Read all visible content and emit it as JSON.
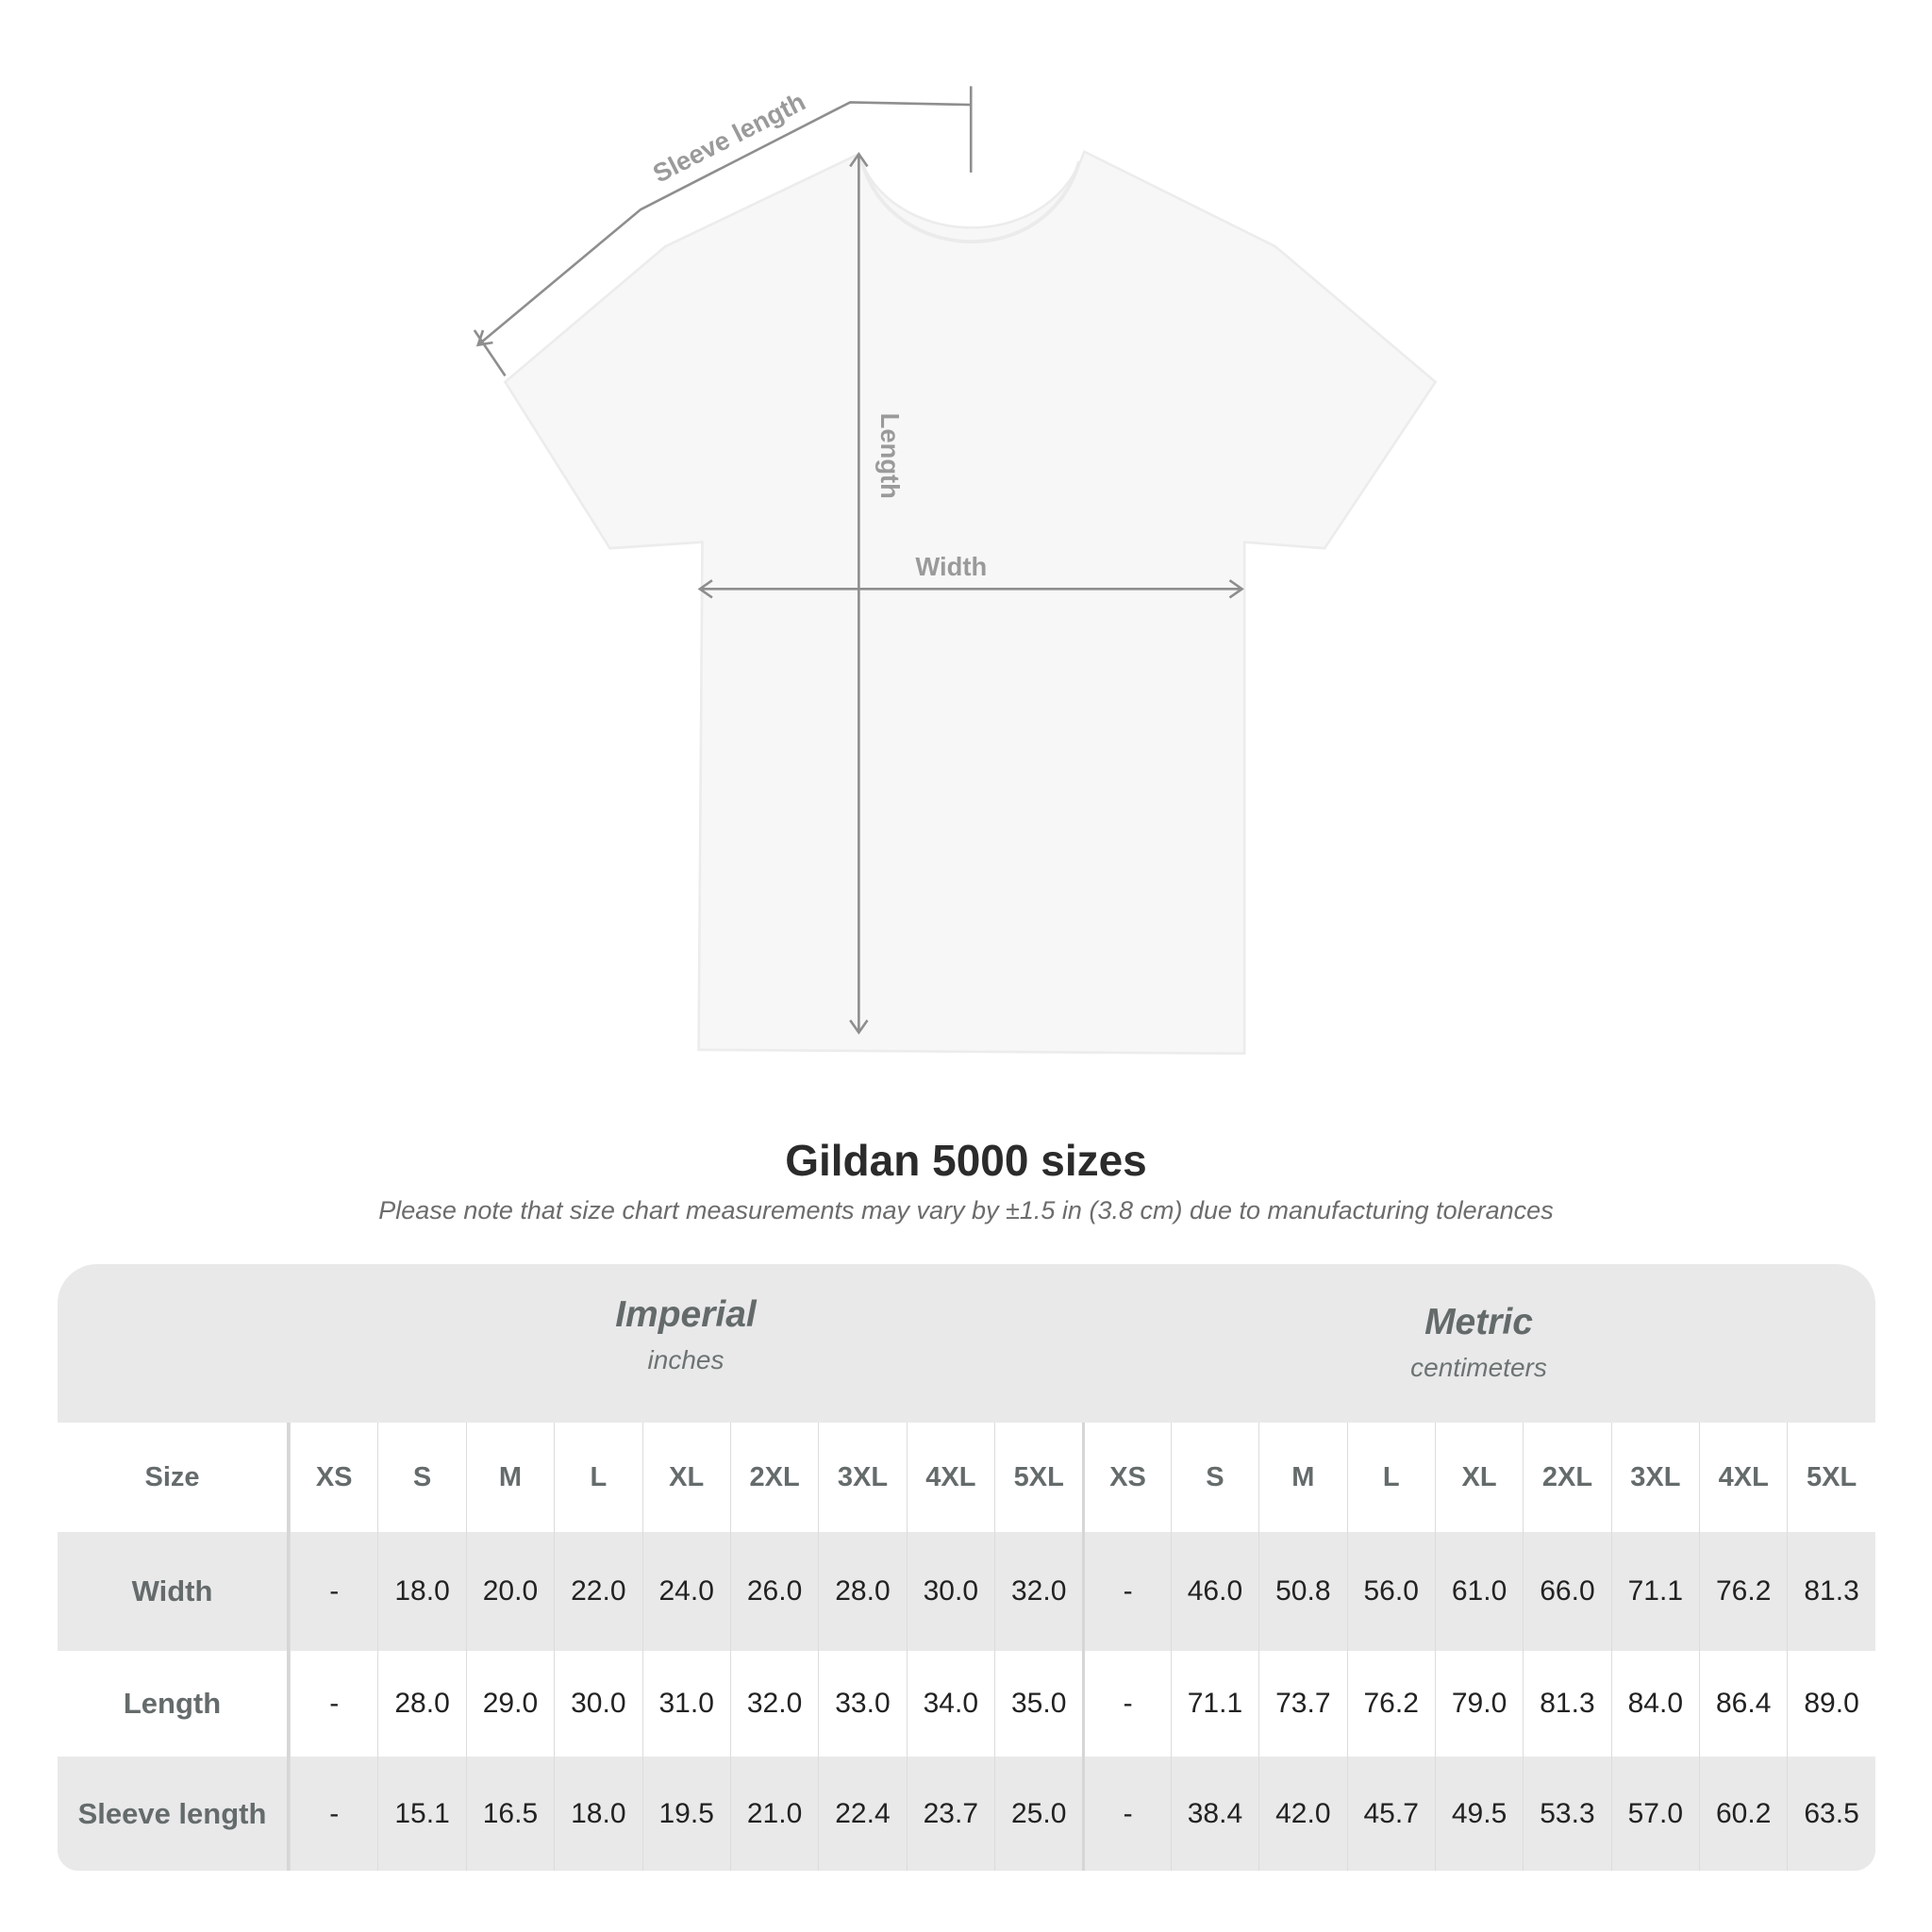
{
  "diagram": {
    "labels": {
      "sleeve": "Sleeve length",
      "length": "Length",
      "width": "Width"
    },
    "shirt_color": "#f7f7f7",
    "arrow_color": "#8e8e8e"
  },
  "title": "Gildan 5000 sizes",
  "subtitle": "Please note that size chart measurements may vary by ±1.5 in (3.8 cm) due to manufacturing tolerances",
  "table": {
    "imperial": {
      "title": "Imperial",
      "unit": "inches"
    },
    "metric": {
      "title": "Metric",
      "unit": "centimeters"
    },
    "size_label": "Size",
    "sizes": [
      "XS",
      "S",
      "M",
      "L",
      "XL",
      "2XL",
      "3XL",
      "4XL",
      "5XL"
    ],
    "rows": [
      {
        "label": "Width",
        "imperial": [
          "-",
          "18.0",
          "20.0",
          "22.0",
          "24.0",
          "26.0",
          "28.0",
          "30.0",
          "32.0"
        ],
        "metric": [
          "-",
          "46.0",
          "50.8",
          "56.0",
          "61.0",
          "66.0",
          "71.1",
          "76.2",
          "81.3"
        ]
      },
      {
        "label": "Length",
        "imperial": [
          "-",
          "28.0",
          "29.0",
          "30.0",
          "31.0",
          "32.0",
          "33.0",
          "34.0",
          "35.0"
        ],
        "metric": [
          "-",
          "71.1",
          "73.7",
          "76.2",
          "79.0",
          "81.3",
          "84.0",
          "86.4",
          "89.0"
        ]
      },
      {
        "label": "Sleeve length",
        "imperial": [
          "-",
          "15.1",
          "16.5",
          "18.0",
          "19.5",
          "21.0",
          "22.4",
          "23.7",
          "25.0"
        ],
        "metric": [
          "-",
          "38.4",
          "42.0",
          "45.7",
          "49.5",
          "53.3",
          "57.0",
          "60.2",
          "63.5"
        ]
      }
    ]
  }
}
